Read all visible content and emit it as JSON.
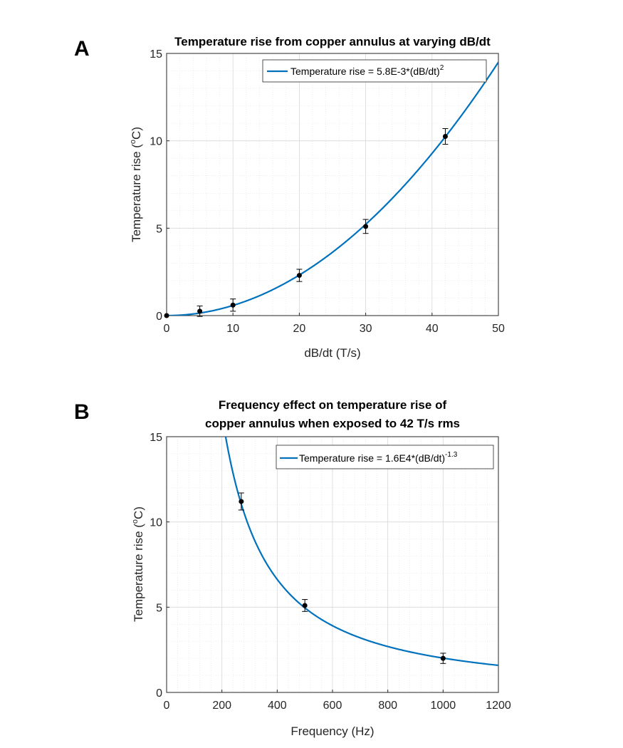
{
  "chart_data": [
    {
      "type": "line",
      "panel_label": "A",
      "title": "Temperature rise from copper annulus at varying dB/dt",
      "xlabel": "dB/dt (T/s)",
      "ylabel": "Temperature rise (",
      "ylabel_sup": "o",
      "ylabel_tail": "C)",
      "xlim": [
        0,
        50
      ],
      "ylim": [
        0,
        15
      ],
      "xticks": [
        0,
        10,
        20,
        30,
        40,
        50
      ],
      "yticks": [
        0,
        5,
        10,
        15
      ],
      "grid": true,
      "legend": {
        "placement": "top-right",
        "text": "Temperature rise = 5.8E-3*(dB/dt)",
        "sup": "2"
      },
      "fit": {
        "model": "power",
        "a": 0.0058,
        "b": 2
      },
      "points": [
        {
          "x": 0,
          "y": 0,
          "err": 0
        },
        {
          "x": 5,
          "y": 0.25,
          "err": 0.3
        },
        {
          "x": 10,
          "y": 0.6,
          "err": 0.35
        },
        {
          "x": 20,
          "y": 2.3,
          "err": 0.35
        },
        {
          "x": 30,
          "y": 5.1,
          "err": 0.4
        },
        {
          "x": 42,
          "y": 10.25,
          "err": 0.45
        }
      ],
      "colors": {
        "fit": "#0072BD",
        "points": "#000000",
        "grid": "#d9d9d9"
      }
    },
    {
      "type": "line",
      "panel_label": "B",
      "title": "Frequency effect on temperature rise of",
      "title_line2": "copper annulus when exposed to 42 T/s rms",
      "xlabel": "Frequency (Hz)",
      "ylabel": "Temperature rise (",
      "ylabel_sup": "o",
      "ylabel_tail": "C)",
      "xlim": [
        0,
        1200
      ],
      "ylim": [
        0,
        15
      ],
      "xticks": [
        0,
        200,
        400,
        600,
        800,
        1000,
        1200
      ],
      "yticks": [
        0,
        5,
        10,
        15
      ],
      "grid": true,
      "legend": {
        "placement": "top-right",
        "text": "Temperature rise = 1.6E4*(dB/dt)",
        "sup": "-1.3"
      },
      "fit": {
        "model": "power",
        "a": 16000,
        "b": -1.3
      },
      "points": [
        {
          "x": 270,
          "y": 11.2,
          "err": 0.5
        },
        {
          "x": 500,
          "y": 5.1,
          "err": 0.35
        },
        {
          "x": 1000,
          "y": 2.0,
          "err": 0.3
        }
      ],
      "colors": {
        "fit": "#0072BD",
        "points": "#000000",
        "grid": "#d9d9d9"
      }
    }
  ]
}
